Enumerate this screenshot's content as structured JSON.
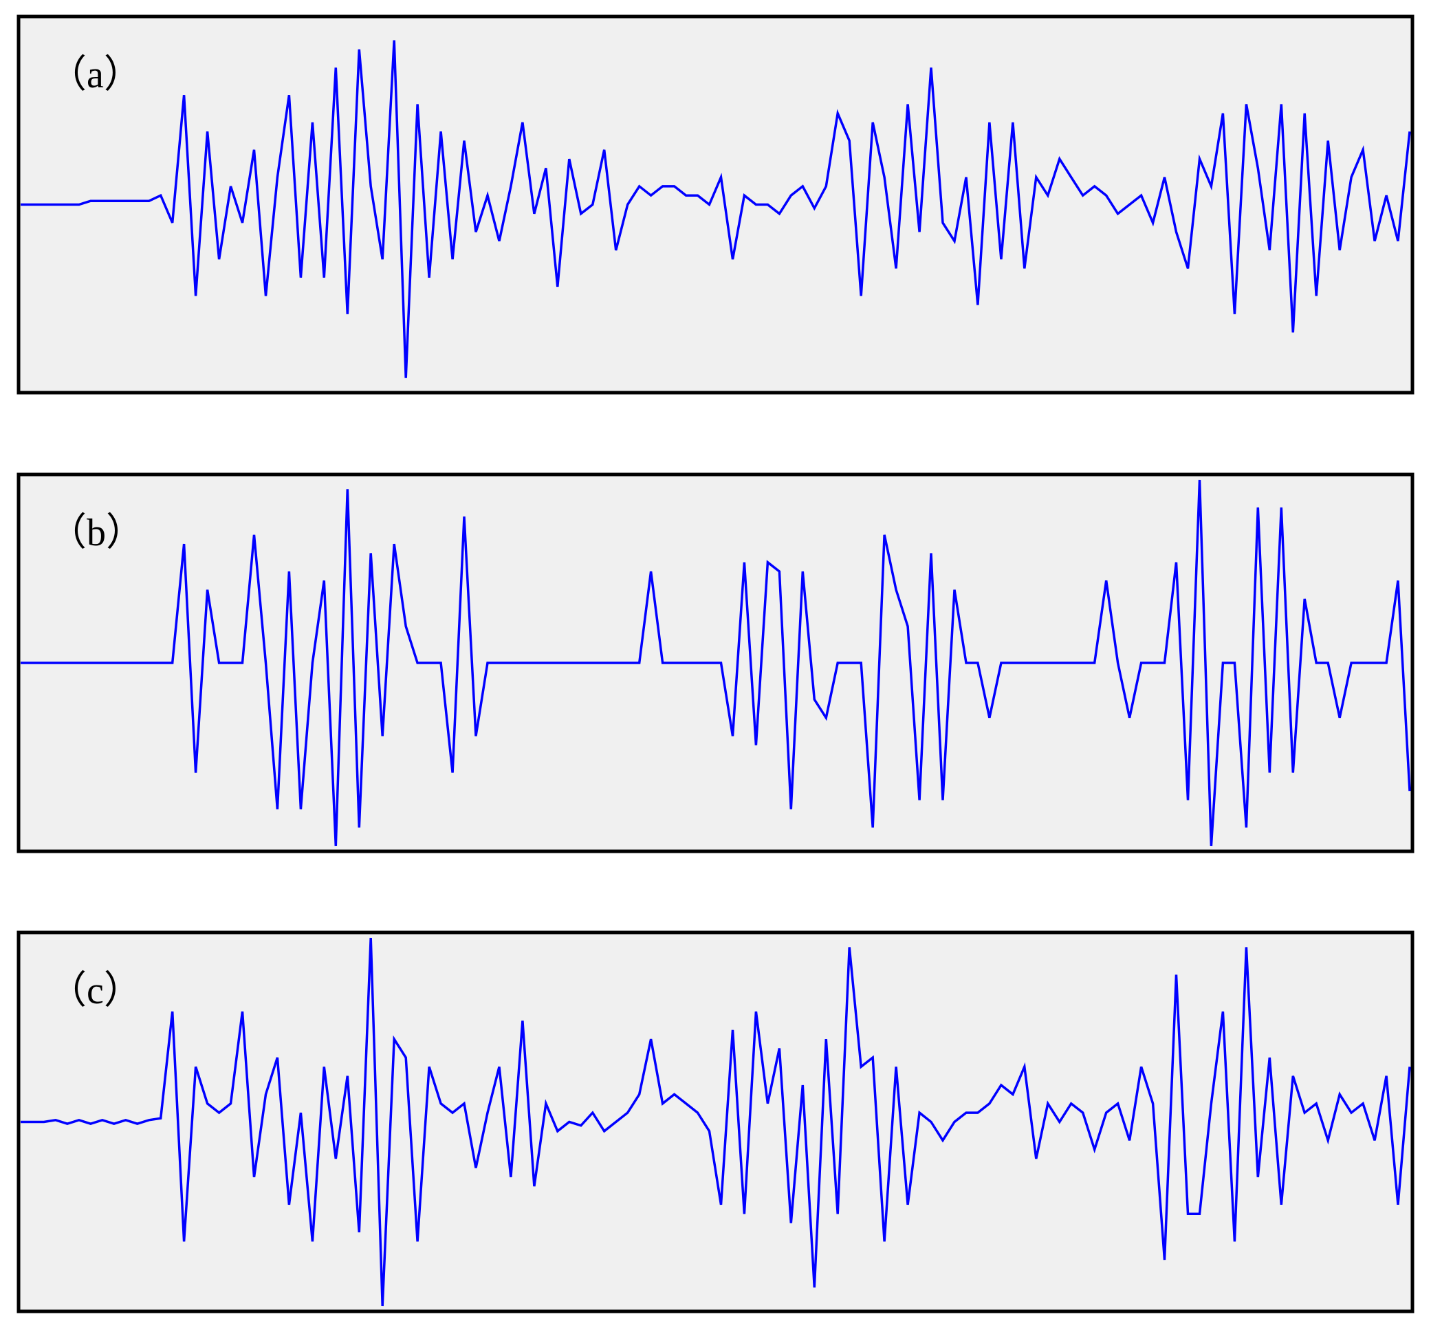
{
  "chart_data": [
    {
      "type": "line",
      "label": "（a）",
      "ylim": [
        -1,
        1
      ],
      "series": [
        {
          "color": "#0000ff",
          "values": [
            0,
            0,
            0,
            0,
            0,
            0,
            0.02,
            0.02,
            0.02,
            0.02,
            0.02,
            0.02,
            0.05,
            -0.1,
            0.6,
            -0.5,
            0.4,
            -0.3,
            0.1,
            -0.1,
            0.3,
            -0.5,
            0.15,
            0.6,
            -0.4,
            0.45,
            -0.4,
            0.75,
            -0.6,
            0.85,
            0.1,
            -0.3,
            0.9,
            -0.95,
            0.55,
            -0.4,
            0.4,
            -0.3,
            0.35,
            -0.15,
            0.05,
            -0.2,
            0.1,
            0.45,
            -0.05,
            0.2,
            -0.45,
            0.25,
            -0.05,
            0,
            0.3,
            -0.25,
            0,
            0.1,
            0.05,
            0.1,
            0.1,
            0.05,
            0.05,
            0,
            0.15,
            -0.3,
            0.05,
            0,
            0,
            -0.05,
            0.05,
            0.1,
            -0.02,
            0.1,
            0.5,
            0.35,
            -0.5,
            0.45,
            0.15,
            -0.35,
            0.55,
            -0.15,
            0.75,
            -0.1,
            -0.2,
            0.15,
            -0.55,
            0.45,
            -0.3,
            0.45,
            -0.35,
            0.15,
            0.05,
            0.25,
            0.15,
            0.05,
            0.1,
            0.05,
            -0.05,
            0,
            0.05,
            -0.1,
            0.15,
            -0.15,
            -0.35,
            0.25,
            0.1,
            0.5,
            -0.6,
            0.55,
            0.2,
            -0.25,
            0.55,
            -0.7,
            0.5,
            -0.5,
            0.35,
            -0.25,
            0.15,
            0.3,
            -0.2,
            0.05,
            -0.2,
            0.4
          ]
        }
      ]
    },
    {
      "type": "line",
      "label": "（b）",
      "ylim": [
        -1,
        1
      ],
      "series": [
        {
          "color": "#0000ff",
          "values": [
            0,
            0,
            0,
            0,
            0,
            0,
            0,
            0,
            0,
            0,
            0,
            0,
            0,
            0,
            0.65,
            -0.6,
            0.4,
            0,
            0,
            0,
            0.7,
            0,
            -0.8,
            0.5,
            -0.8,
            0,
            0.45,
            -1.0,
            0.95,
            -0.9,
            0.6,
            -0.4,
            0.65,
            0.2,
            0,
            0,
            0,
            -0.6,
            0.8,
            -0.4,
            0,
            0,
            0,
            0,
            0,
            0,
            0,
            0,
            0,
            0,
            0,
            0,
            0,
            0,
            0.5,
            0,
            0,
            0,
            0,
            0,
            0,
            -0.4,
            0.55,
            -0.45,
            0.55,
            0.5,
            -0.8,
            0.5,
            -0.2,
            -0.3,
            0,
            0,
            0,
            -0.9,
            0.7,
            0.4,
            0.2,
            -0.75,
            0.6,
            -0.75,
            0.4,
            0,
            0,
            -0.3,
            0,
            0,
            0,
            0,
            0,
            0,
            0,
            0,
            0,
            0.45,
            0,
            -0.3,
            0,
            0,
            0,
            0.55,
            -0.75,
            1.0,
            -1.0,
            0,
            0,
            -0.9,
            0.85,
            -0.6,
            0.85,
            -0.6,
            0.35,
            0,
            0,
            -0.3,
            0,
            0,
            0,
            0,
            0.45,
            -0.7
          ]
        }
      ]
    },
    {
      "type": "line",
      "label": "（c）",
      "ylim": [
        -1,
        1
      ],
      "series": [
        {
          "color": "#0000ff",
          "values": [
            0,
            0,
            0,
            0.01,
            -0.01,
            0.01,
            -0.01,
            0.01,
            -0.01,
            0.01,
            -0.01,
            0.01,
            0.02,
            0.6,
            -0.65,
            0.3,
            0.1,
            0.05,
            0.1,
            0.6,
            -0.3,
            0.15,
            0.35,
            -0.45,
            0.05,
            -0.65,
            0.3,
            -0.2,
            0.25,
            -0.6,
            1.0,
            -1.0,
            0.45,
            0.35,
            -0.65,
            0.3,
            0.1,
            0.05,
            0.1,
            -0.25,
            0.05,
            0.3,
            -0.3,
            0.55,
            -0.35,
            0.1,
            -0.05,
            0,
            -0.02,
            0.05,
            -0.05,
            0,
            0.05,
            0.15,
            0.45,
            0.1,
            0.15,
            0.1,
            0.05,
            -0.05,
            -0.45,
            0.5,
            -0.5,
            0.6,
            0.1,
            0.4,
            -0.55,
            0.2,
            -0.9,
            0.45,
            -0.5,
            0.95,
            0.3,
            0.35,
            -0.65,
            0.3,
            -0.45,
            0.05,
            0,
            -0.1,
            0,
            0.05,
            0.05,
            0.1,
            0.2,
            0.15,
            0.3,
            -0.2,
            0.1,
            0,
            0.1,
            0.05,
            -0.15,
            0.05,
            0.1,
            -0.1,
            0.3,
            0.1,
            -0.75,
            0.8,
            -0.5,
            -0.5,
            0.1,
            0.6,
            -0.65,
            0.95,
            -0.3,
            0.35,
            -0.45,
            0.25,
            0.05,
            0.1,
            -0.1,
            0.15,
            0.05,
            0.1,
            -0.1,
            0.25,
            -0.45,
            0.3
          ]
        }
      ]
    }
  ]
}
